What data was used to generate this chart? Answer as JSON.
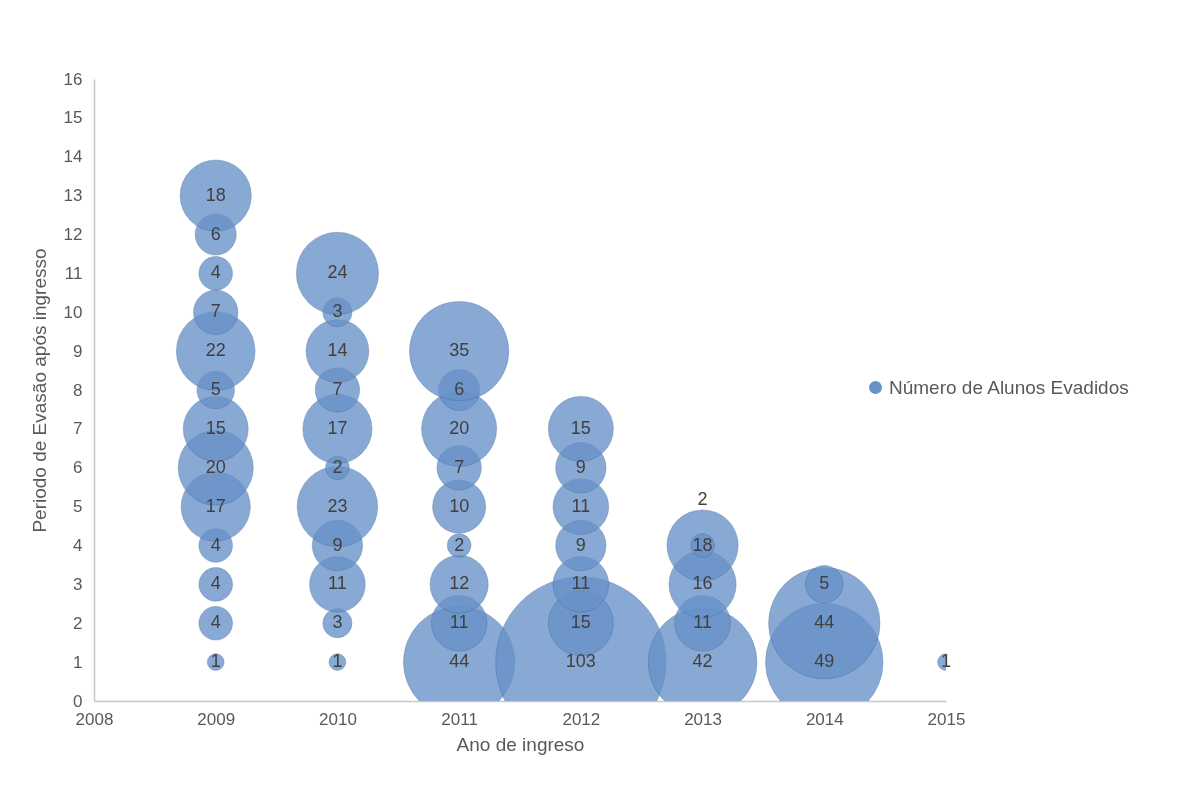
{
  "chart_data": {
    "type": "bubble",
    "xlabel": "Ano de ingreso",
    "ylabel": "Periodo de Evasão após ingresso",
    "series": [
      {
        "name": "Número de Alunos Evadidos",
        "color": "#6791c8",
        "x": [
          2009,
          2009,
          2009,
          2009,
          2009,
          2009,
          2009,
          2009,
          2009,
          2009,
          2009,
          2009,
          2009,
          2010,
          2010,
          2010,
          2010,
          2010,
          2010,
          2010,
          2010,
          2010,
          2010,
          2010,
          2011,
          2011,
          2011,
          2011,
          2011,
          2011,
          2011,
          2011,
          2011,
          2012,
          2012,
          2012,
          2012,
          2012,
          2012,
          2012,
          2013,
          2013,
          2013,
          2013,
          2013,
          2014,
          2014,
          2014,
          2015
        ],
        "values": [
          1,
          2,
          3,
          4,
          5,
          6,
          7,
          8,
          9,
          10,
          11,
          12,
          13,
          1,
          2,
          3,
          4,
          5,
          6,
          7,
          8,
          9,
          10,
          11,
          1,
          2,
          3,
          4,
          5,
          6,
          7,
          8,
          9,
          1,
          2,
          3,
          4,
          5,
          6,
          7,
          1,
          2,
          3,
          4,
          4,
          1,
          2,
          3,
          1
        ],
        "sizes": [
          1,
          4,
          4,
          4,
          17,
          20,
          15,
          5,
          22,
          7,
          4,
          6,
          18,
          1,
          3,
          11,
          9,
          23,
          2,
          17,
          7,
          14,
          3,
          24,
          44,
          11,
          12,
          2,
          10,
          7,
          20,
          6,
          35,
          103,
          15,
          11,
          9,
          11,
          9,
          15,
          42,
          11,
          16,
          18,
          2,
          49,
          44,
          5,
          1
        ],
        "value_labels": [
          "1",
          "4",
          "4",
          "4",
          "17",
          "20",
          "15",
          "5",
          "22",
          "7",
          "4",
          "6",
          "18",
          "1",
          "3",
          "11",
          "9",
          "23",
          "2",
          "17",
          "7",
          "14",
          "3",
          "24",
          "44",
          "11",
          "12",
          "2",
          "10",
          "7",
          "20",
          "6",
          "35",
          "103",
          "15",
          "11",
          "9",
          "11",
          "9",
          "15",
          "42",
          "11",
          "16",
          "18",
          "2",
          "49",
          "44",
          "5",
          "1"
        ]
      }
    ],
    "xlim": [
      2008,
      2015
    ],
    "xticks": [
      2008,
      2009,
      2010,
      2011,
      2012,
      2013,
      2014,
      2015
    ],
    "ylim": [
      0,
      16
    ],
    "yticks": [
      0,
      1,
      2,
      3,
      4,
      5,
      6,
      7,
      8,
      9,
      10,
      11,
      12,
      13,
      14,
      15,
      16
    ],
    "grid": false,
    "legend": "right"
  }
}
